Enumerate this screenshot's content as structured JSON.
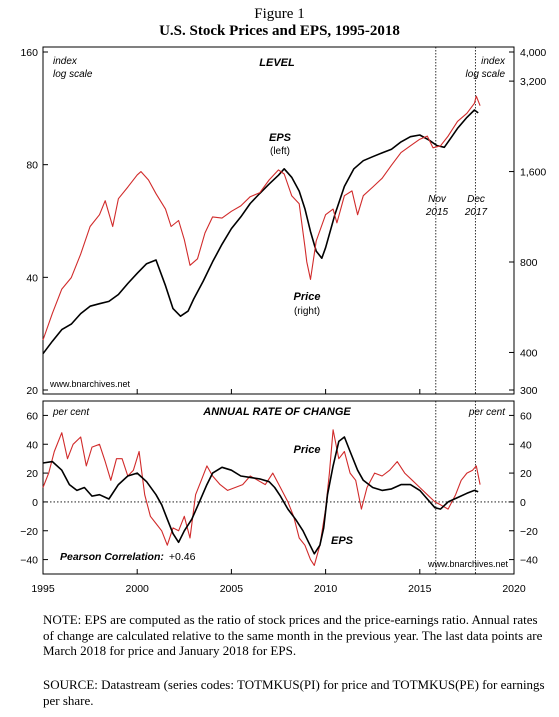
{
  "figure_label": "Figure 1",
  "title": "U.S. Stock Prices and EPS, 1995-2018",
  "note": "NOTE: EPS are computed as the ratio of stock prices and the price-earnings ratio. Annual rates of change are calculated relative to the same month in the previous year. The last data points are March 2018 for price and January 2018 for EPS.",
  "source": "SOURCE: Datastream (series codes: TOTMKUS(PI) for price and TOTMKUS(PE) for earnings per share.",
  "colors": {
    "eps": "#000000",
    "price": "#d12b2b"
  },
  "chart_data": [
    {
      "type": "line",
      "panel_title": "LEVEL",
      "left_axis_note": [
        "index",
        "log scale"
      ],
      "right_axis_note": [
        "index",
        "log scale"
      ],
      "y_scale": "log",
      "xlim": [
        1995,
        2020
      ],
      "left_ylim": [
        20,
        160
      ],
      "left_ticks": [
        20,
        40,
        80,
        160
      ],
      "right_ylim": [
        300,
        4000
      ],
      "right_ticks": [
        300,
        400,
        800,
        1600,
        3200,
        4000
      ],
      "right_tick_labels": [
        "300",
        "400",
        "800",
        "1,600",
        "3,200",
        "4,000"
      ],
      "series": [
        {
          "name": "EPS",
          "sublabel": "(left)",
          "axis": "left",
          "color": "#000000",
          "x": [
            1995.0,
            1995.5,
            1996.0,
            1996.5,
            1997.0,
            1997.5,
            1998.0,
            1998.5,
            1999.0,
            1999.5,
            2000.0,
            2000.5,
            2001.0,
            2001.5,
            2001.9,
            2002.3,
            2002.7,
            2003.0,
            2003.5,
            2004.0,
            2004.5,
            2005.0,
            2005.5,
            2006.0,
            2006.5,
            2007.0,
            2007.5,
            2007.8,
            2008.2,
            2008.6,
            2008.9,
            2009.2,
            2009.5,
            2009.8,
            2010.0,
            2010.5,
            2011.0,
            2011.5,
            2012.0,
            2012.5,
            2013.0,
            2013.5,
            2014.0,
            2014.5,
            2015.0,
            2015.5,
            2015.9,
            2016.3,
            2016.7,
            2017.0,
            2017.5,
            2017.9,
            2018.1
          ],
          "values": [
            25,
            27,
            29,
            30,
            32,
            33.5,
            34,
            34.5,
            36,
            38.5,
            41,
            43.5,
            44.5,
            38,
            33,
            31.5,
            32.5,
            35,
            39,
            44,
            49,
            54,
            58,
            63,
            67,
            71,
            75,
            78,
            74,
            68,
            61,
            53,
            47,
            45,
            48,
            59,
            70,
            78,
            82,
            84,
            86,
            88,
            92,
            95,
            96,
            93,
            90,
            89,
            95,
            100,
            107,
            112,
            110
          ]
        },
        {
          "name": "Price",
          "sublabel": "(right)",
          "axis": "right",
          "color": "#d12b2b",
          "x": [
            1995.0,
            1995.5,
            1996.0,
            1996.5,
            1997.0,
            1997.5,
            1998.0,
            1998.3,
            1998.7,
            1999.0,
            1999.5,
            2000.0,
            2000.2,
            2000.6,
            2001.0,
            2001.5,
            2001.8,
            2002.2,
            2002.5,
            2002.8,
            2003.2,
            2003.6,
            2004.0,
            2004.5,
            2005.0,
            2005.5,
            2006.0,
            2006.5,
            2007.0,
            2007.5,
            2007.8,
            2008.2,
            2008.6,
            2008.9,
            2009.0,
            2009.2,
            2009.5,
            2010.0,
            2010.4,
            2010.6,
            2011.0,
            2011.4,
            2011.7,
            2012.0,
            2012.5,
            2013.0,
            2013.5,
            2014.0,
            2014.5,
            2015.0,
            2015.4,
            2015.7,
            2016.1,
            2016.5,
            2017.0,
            2017.5,
            2017.9,
            2018.0,
            2018.2
          ],
          "values": [
            440,
            540,
            650,
            710,
            850,
            1050,
            1150,
            1280,
            1050,
            1300,
            1420,
            1560,
            1600,
            1500,
            1350,
            1200,
            1050,
            1100,
            950,
            780,
            820,
            1000,
            1130,
            1120,
            1180,
            1230,
            1320,
            1360,
            1500,
            1620,
            1570,
            1330,
            1250,
            900,
            800,
            700,
            940,
            1150,
            1200,
            1080,
            1330,
            1380,
            1150,
            1330,
            1420,
            1520,
            1680,
            1850,
            1950,
            2050,
            2100,
            1920,
            1950,
            2100,
            2350,
            2500,
            2700,
            2850,
            2650
          ]
        }
      ],
      "annotations": [
        {
          "label": "Nov",
          "sublabel": "2015",
          "x": 2015.85
        },
        {
          "label": "Dec",
          "sublabel": "2017",
          "x": 2017.95
        }
      ],
      "watermark": "www.bnarchives.net"
    },
    {
      "type": "line",
      "panel_title": "ANNUAL RATE OF CHANGE",
      "left_axis_note": "per cent",
      "right_axis_note": "per cent",
      "xlim": [
        1995,
        2020
      ],
      "ylim": [
        -50,
        70
      ],
      "y_ticks": [
        -40,
        -20,
        0,
        20,
        40,
        60
      ],
      "x_ticks": [
        1995,
        2000,
        2005,
        2010,
        2015,
        2020
      ],
      "series": [
        {
          "name": "EPS",
          "color": "#000000",
          "x": [
            1995.0,
            1995.5,
            1996.0,
            1996.4,
            1996.8,
            1997.2,
            1997.6,
            1998.0,
            1998.5,
            1999.0,
            1999.5,
            2000.0,
            2000.5,
            2001.0,
            2001.3,
            2001.6,
            2001.9,
            2002.2,
            2002.5,
            2002.9,
            2003.3,
            2003.7,
            2004.0,
            2004.5,
            2005.0,
            2005.5,
            2006.0,
            2006.5,
            2007.0,
            2007.3,
            2007.6,
            2008.0,
            2008.4,
            2008.8,
            2009.1,
            2009.4,
            2009.7,
            2009.9,
            2010.1,
            2010.4,
            2010.7,
            2011.0,
            2011.3,
            2011.7,
            2012.0,
            2012.5,
            2013.0,
            2013.5,
            2014.0,
            2014.5,
            2015.0,
            2015.4,
            2015.8,
            2016.1,
            2016.5,
            2017.0,
            2017.5,
            2017.9,
            2018.1
          ],
          "values": [
            27,
            28,
            22,
            12,
            8,
            10,
            4,
            5,
            2,
            12,
            18,
            20,
            14,
            5,
            -2,
            -12,
            -22,
            -28,
            -20,
            -12,
            0,
            12,
            20,
            24,
            22,
            18,
            17,
            16,
            14,
            10,
            4,
            -5,
            -12,
            -20,
            -28,
            -36,
            -30,
            -18,
            5,
            25,
            42,
            45,
            35,
            22,
            15,
            10,
            8,
            9,
            12,
            12,
            8,
            2,
            -4,
            -5,
            0,
            3,
            6,
            8,
            7
          ]
        },
        {
          "name": "Price",
          "color": "#d12b2b",
          "x": [
            1995.0,
            1995.3,
            1995.6,
            1996.0,
            1996.3,
            1996.6,
            1997.0,
            1997.3,
            1997.6,
            1998.0,
            1998.3,
            1998.6,
            1998.9,
            1999.2,
            1999.5,
            1999.8,
            2000.1,
            2000.4,
            2000.7,
            2001.0,
            2001.3,
            2001.6,
            2001.9,
            2002.2,
            2002.5,
            2002.8,
            2003.1,
            2003.4,
            2003.7,
            2004.0,
            2004.4,
            2004.8,
            2005.2,
            2005.6,
            2006.0,
            2006.4,
            2006.8,
            2007.2,
            2007.6,
            2008.0,
            2008.3,
            2008.6,
            2008.9,
            2009.2,
            2009.4,
            2009.7,
            2010.0,
            2010.2,
            2010.4,
            2010.7,
            2011.0,
            2011.3,
            2011.6,
            2011.9,
            2012.2,
            2012.6,
            2013.0,
            2013.4,
            2013.8,
            2014.2,
            2014.6,
            2015.0,
            2015.4,
            2015.8,
            2016.1,
            2016.5,
            2016.9,
            2017.2,
            2017.5,
            2017.8,
            2018.0,
            2018.2
          ],
          "values": [
            10,
            20,
            35,
            48,
            30,
            40,
            45,
            25,
            38,
            40,
            28,
            15,
            30,
            30,
            18,
            22,
            35,
            5,
            -10,
            -15,
            -20,
            -30,
            -18,
            -20,
            -10,
            -25,
            5,
            15,
            25,
            18,
            12,
            8,
            10,
            12,
            18,
            15,
            12,
            20,
            10,
            0,
            -10,
            -25,
            -30,
            -40,
            -44,
            -30,
            -5,
            20,
            50,
            30,
            35,
            20,
            15,
            -5,
            10,
            20,
            18,
            22,
            28,
            20,
            15,
            10,
            5,
            0,
            -2,
            -5,
            5,
            15,
            20,
            22,
            25,
            12
          ]
        }
      ],
      "correlation_label": "Pearson Correlation:",
      "correlation_value": "+0.46",
      "watermark": "www.bnarchives.net"
    }
  ]
}
